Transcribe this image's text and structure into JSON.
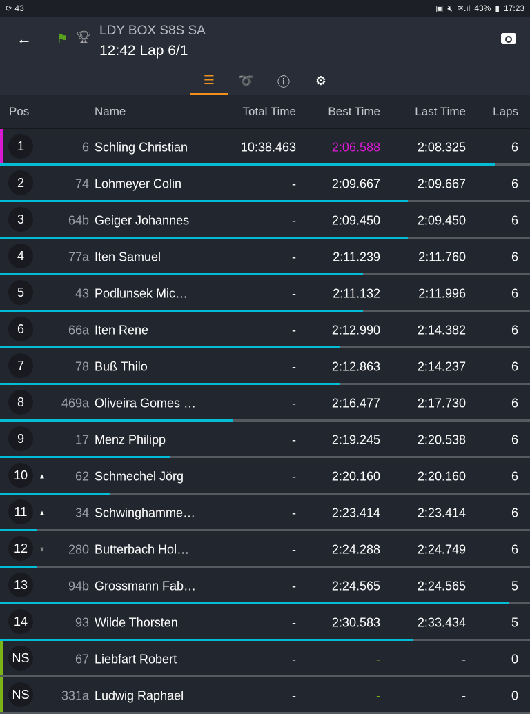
{
  "status_bar": {
    "left": "43",
    "battery": "43%",
    "time": "17:23"
  },
  "header": {
    "title": "LDY BOX S8S SA",
    "subtitle": "12:42 Lap 6/1",
    "flag_color": "#5aa020"
  },
  "tabs": [
    {
      "icon": "list-icon",
      "active": true
    },
    {
      "icon": "track-icon"
    },
    {
      "icon": "info-icon"
    },
    {
      "icon": "gear-icon"
    }
  ],
  "columns": {
    "pos": "Pos",
    "name": "Name",
    "total": "Total Time",
    "best": "Best Time",
    "last": "Last Time",
    "laps": "Laps"
  },
  "colors": {
    "progress": "#00bcd4",
    "fastest": "#d81bd0",
    "leader_marker": "#d81bd0",
    "ns_marker": "#7cb518",
    "tab_accent": "#f0901e"
  },
  "rows": [
    {
      "pos": "1",
      "num": "6",
      "name": "Schling Christian",
      "total": "10:38.463",
      "best": "2:06.588",
      "last": "2:08.325",
      "laps": "6",
      "progress": 0.935,
      "best_fastest": true,
      "marker": "leader"
    },
    {
      "pos": "2",
      "num": "74",
      "name": "Lohmeyer Colin",
      "total": "-",
      "best": "2:09.667",
      "last": "2:09.667",
      "laps": "6",
      "progress": 0.77
    },
    {
      "pos": "3",
      "num": "64b",
      "name": "Geiger Johannes",
      "total": "-",
      "best": "2:09.450",
      "last": "2:09.450",
      "laps": "6",
      "progress": 0.77
    },
    {
      "pos": "4",
      "num": "77a",
      "name": "Iten Samuel",
      "total": "-",
      "best": "2:11.239",
      "last": "2:11.760",
      "laps": "6",
      "progress": 0.685
    },
    {
      "pos": "5",
      "num": "43",
      "name": "Podlunsek Mic…",
      "total": "-",
      "best": "2:11.132",
      "last": "2:11.996",
      "laps": "6",
      "progress": 0.685
    },
    {
      "pos": "6",
      "num": "66a",
      "name": "Iten Rene",
      "total": "-",
      "best": "2:12.990",
      "last": "2:14.382",
      "laps": "6",
      "progress": 0.64
    },
    {
      "pos": "7",
      "num": "78",
      "name": "Buß Thilo",
      "total": "-",
      "best": "2:12.863",
      "last": "2:14.237",
      "laps": "6",
      "progress": 0.64
    },
    {
      "pos": "8",
      "num": "469a",
      "name": "Oliveira Gomes …",
      "total": "-",
      "best": "2:16.477",
      "last": "2:17.730",
      "laps": "6",
      "progress": 0.44
    },
    {
      "pos": "9",
      "num": "17",
      "name": "Menz Philipp",
      "total": "-",
      "best": "2:19.245",
      "last": "2:20.538",
      "laps": "6",
      "progress": 0.32
    },
    {
      "pos": "10",
      "num": "62",
      "name": "Schmechel Jörg",
      "total": "-",
      "best": "2:20.160",
      "last": "2:20.160",
      "laps": "6",
      "progress": 0.207,
      "trend": "up"
    },
    {
      "pos": "11",
      "num": "34",
      "name": "Schwinghamme…",
      "total": "-",
      "best": "2:23.414",
      "last": "2:23.414",
      "laps": "6",
      "progress": 0.069,
      "trend": "up"
    },
    {
      "pos": "12",
      "num": "280",
      "name": "Butterbach Hol…",
      "total": "-",
      "best": "2:24.288",
      "last": "2:24.749",
      "laps": "6",
      "progress": 0.069,
      "trend": "down"
    },
    {
      "pos": "13",
      "num": "94b",
      "name": "Grossmann Fab…",
      "total": "-",
      "best": "2:24.565",
      "last": "2:24.565",
      "laps": "5",
      "progress": 0.96
    },
    {
      "pos": "14",
      "num": "93",
      "name": "Wilde Thorsten",
      "total": "-",
      "best": "2:30.583",
      "last": "2:33.434",
      "laps": "5",
      "progress": 0.78
    },
    {
      "pos": "NS",
      "num": "67",
      "name": "Liebfart Robert",
      "total": "-",
      "best": "-",
      "last": "-",
      "laps": "0",
      "progress": 0,
      "marker": "ns",
      "best_dash_green": true
    },
    {
      "pos": "NS",
      "num": "331a",
      "name": "Ludwig Raphael",
      "total": "-",
      "best": "-",
      "last": "-",
      "laps": "0",
      "progress": 0,
      "marker": "ns",
      "best_dash_green": true
    }
  ]
}
